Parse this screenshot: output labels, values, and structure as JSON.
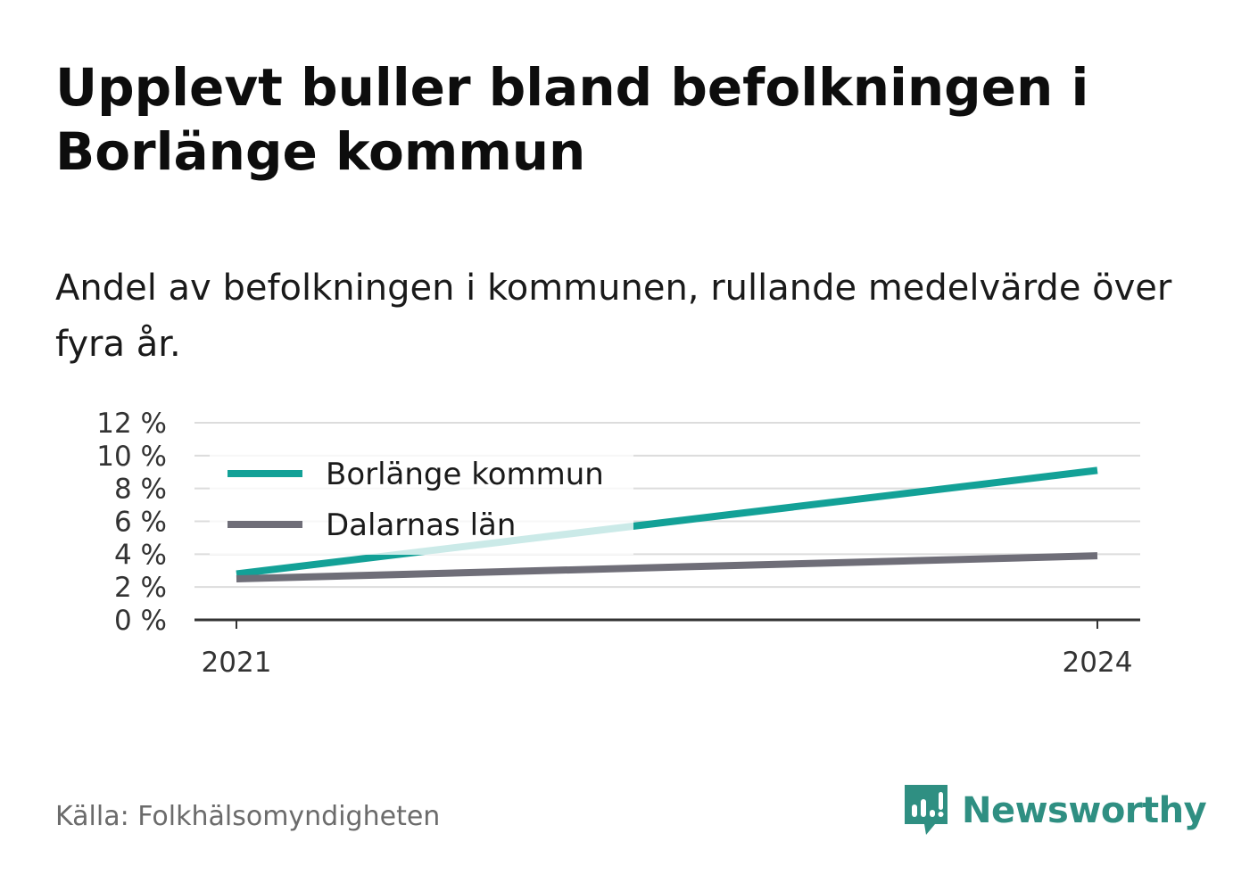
{
  "title": "Upplevt buller bland befolkningen i Borlänge kommun",
  "subtitle": "Andel av befolkningen i kommunen, rullande medelvärde över fyra år.",
  "source": "Källa: Folkhälsomyndigheten",
  "brand": {
    "name": "Newsworthy",
    "icon": "newsworthy-logo-icon",
    "color": "#2f8f82"
  },
  "chart_data": {
    "type": "line",
    "x": [
      2021,
      2024
    ],
    "x_tick_labels": [
      "2021",
      "2024"
    ],
    "y_tick_labels": [
      "0 %",
      "2 %",
      "4 %",
      "6 %",
      "8 %",
      "10 %",
      "12 %"
    ],
    "y_ticks": [
      0,
      2,
      4,
      6,
      8,
      10,
      12
    ],
    "ylim": [
      0,
      12
    ],
    "grid": true,
    "legend_position": "top-left",
    "series": [
      {
        "name": "Borlänge kommun",
        "values": [
          2.8,
          9.1
        ],
        "color": "#13a197"
      },
      {
        "name": "Dalarnas län",
        "values": [
          2.5,
          3.9
        ],
        "color": "#6f6e78"
      }
    ]
  }
}
